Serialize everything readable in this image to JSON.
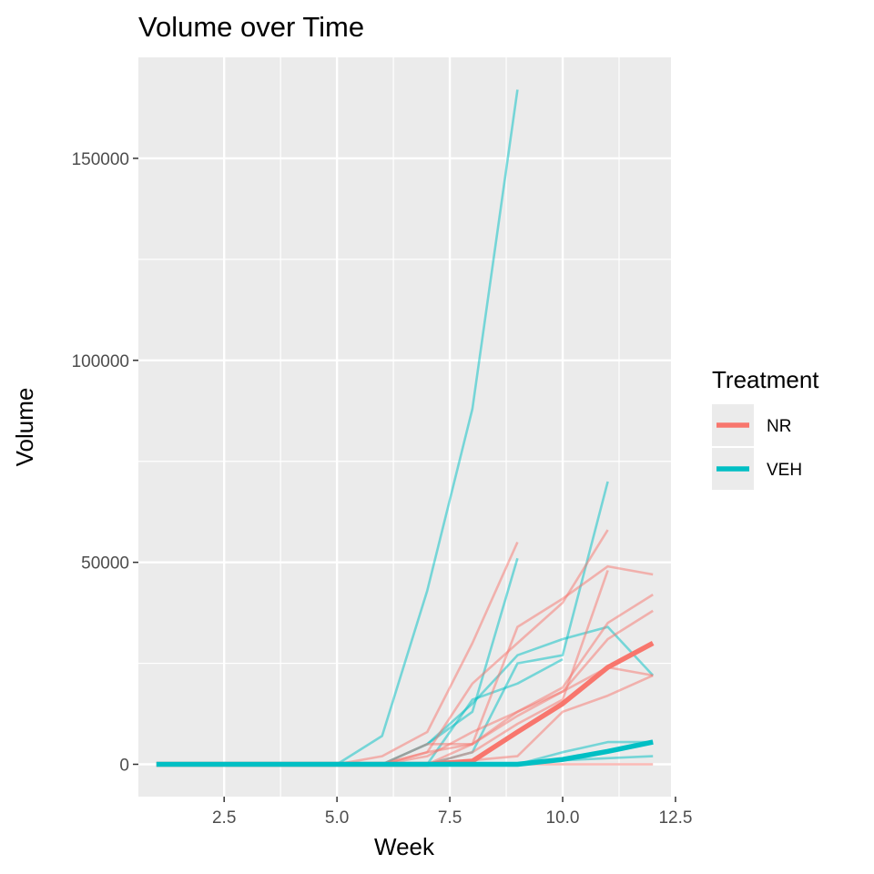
{
  "chart_data": {
    "type": "line",
    "title": "Volume over Time",
    "xlabel": "Week",
    "ylabel": "Volume",
    "xlim": [
      0.6,
      12.4
    ],
    "ylim": [
      -8000,
      175000
    ],
    "xticks": [
      2.5,
      5.0,
      7.5,
      10.0,
      12.5
    ],
    "xtick_labels": [
      "2.5",
      "5.0",
      "7.5",
      "10.0",
      "12.5"
    ],
    "yticks": [
      0,
      50000,
      100000,
      150000
    ],
    "ytick_labels": [
      "0",
      "50000",
      "100000",
      "150000"
    ],
    "grid": true,
    "legend": {
      "title": "Treatment",
      "position": "right",
      "entries": [
        {
          "label": "NR",
          "color": "#F8766D"
        },
        {
          "label": "VEH",
          "color": "#00BFC4"
        }
      ]
    },
    "colors": {
      "NR": "#F8766D",
      "VEH": "#00BFC4",
      "panel": "#EBEBEB"
    },
    "mean_series": [
      {
        "group": "NR",
        "x": [
          1,
          2,
          3,
          4,
          5,
          6,
          7,
          8,
          9,
          10,
          11,
          12
        ],
        "y": [
          0,
          0,
          0,
          0,
          0,
          0,
          0,
          800,
          8000,
          15000,
          24000,
          30000
        ]
      },
      {
        "group": "VEH",
        "x": [
          1,
          2,
          3,
          4,
          5,
          6,
          7,
          8,
          9,
          10,
          11,
          12
        ],
        "y": [
          0,
          0,
          0,
          0,
          0,
          0,
          0,
          0,
          0,
          1200,
          3200,
          5500
        ]
      }
    ],
    "individual_series": [
      {
        "group": "VEH",
        "x": [
          5,
          6,
          7,
          8,
          9
        ],
        "y": [
          0,
          7000,
          43000,
          88000,
          167000
        ]
      },
      {
        "group": "VEH",
        "x": [
          6,
          7,
          8,
          9,
          10,
          11
        ],
        "y": [
          0,
          0,
          3000,
          25000,
          27000,
          70000
        ]
      },
      {
        "group": "VEH",
        "x": [
          6,
          7,
          8,
          9,
          10,
          11,
          12
        ],
        "y": [
          0,
          5000,
          15000,
          27000,
          31000,
          34000,
          22000
        ]
      },
      {
        "group": "VEH",
        "x": [
          6,
          7,
          8,
          9
        ],
        "y": [
          0,
          5000,
          13000,
          51000
        ]
      },
      {
        "group": "VEH",
        "x": [
          6,
          7,
          8,
          9,
          10
        ],
        "y": [
          0,
          0,
          16000,
          20000,
          26000
        ]
      },
      {
        "group": "VEH",
        "x": [
          6,
          7,
          8,
          9,
          10,
          11,
          12
        ],
        "y": [
          0,
          0,
          0,
          0,
          3000,
          5500,
          5500
        ]
      },
      {
        "group": "VEH",
        "x": [
          6,
          7,
          8,
          9,
          10,
          11,
          12
        ],
        "y": [
          0,
          0,
          0,
          0,
          1000,
          1500,
          2000
        ]
      },
      {
        "group": "NR",
        "x": [
          5,
          6,
          7,
          8,
          9
        ],
        "y": [
          0,
          2000,
          8000,
          30000,
          55000
        ]
      },
      {
        "group": "NR",
        "x": [
          6,
          7,
          8,
          9,
          10,
          11
        ],
        "y": [
          0,
          3000,
          20000,
          30000,
          40000,
          58000
        ]
      },
      {
        "group": "NR",
        "x": [
          6,
          7,
          8,
          9,
          10,
          11,
          12
        ],
        "y": [
          0,
          3000,
          5000,
          34000,
          41000,
          49000,
          47000
        ]
      },
      {
        "group": "NR",
        "x": [
          6,
          7,
          8,
          9,
          10,
          11,
          12
        ],
        "y": [
          0,
          2000,
          8000,
          13000,
          19000,
          35000,
          42000
        ]
      },
      {
        "group": "NR",
        "x": [
          6,
          7,
          8,
          9,
          10,
          11,
          12
        ],
        "y": [
          0,
          0,
          5000,
          13000,
          18000,
          31000,
          38000
        ]
      },
      {
        "group": "NR",
        "x": [
          6,
          7,
          8,
          9,
          10,
          11,
          12
        ],
        "y": [
          0,
          5000,
          5000,
          12000,
          18000,
          24000,
          22000
        ]
      },
      {
        "group": "NR",
        "x": [
          6,
          7,
          8,
          9,
          10,
          11,
          12
        ],
        "y": [
          0,
          0,
          1000,
          2000,
          13000,
          17000,
          22000
        ]
      },
      {
        "group": "NR",
        "x": [
          6,
          7,
          8,
          9,
          10,
          11
        ],
        "y": [
          0,
          0,
          3000,
          10000,
          16000,
          48000
        ]
      },
      {
        "group": "NR",
        "x": [
          7,
          8,
          9,
          10,
          11,
          12
        ],
        "y": [
          0,
          0,
          0,
          0,
          0,
          0
        ]
      }
    ]
  }
}
